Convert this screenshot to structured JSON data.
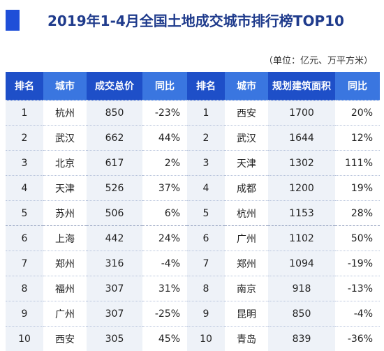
{
  "title": "2019年1-4月全国土地成交城市排行榜TOP10",
  "unit_note": "（单位：亿元、万平方米）",
  "headers": [
    "排名",
    "城市",
    "成交总价",
    "同比",
    "排名",
    "城市",
    "规划建筑面积",
    "同比"
  ],
  "rows": [
    {
      "l_rank": "1",
      "l_city": "杭州",
      "l_value": "850",
      "l_yoy": "-23%",
      "r_rank": "1",
      "r_city": "西安",
      "r_value": "1700",
      "r_yoy": "20%"
    },
    {
      "l_rank": "2",
      "l_city": "武汉",
      "l_value": "662",
      "l_yoy": "44%",
      "r_rank": "2",
      "r_city": "武汉",
      "r_value": "1644",
      "r_yoy": "12%"
    },
    {
      "l_rank": "3",
      "l_city": "北京",
      "l_value": "617",
      "l_yoy": "2%",
      "r_rank": "3",
      "r_city": "天津",
      "r_value": "1302",
      "r_yoy": "111%"
    },
    {
      "l_rank": "4",
      "l_city": "天津",
      "l_value": "526",
      "l_yoy": "37%",
      "r_rank": "4",
      "r_city": "成都",
      "r_value": "1200",
      "r_yoy": "19%"
    },
    {
      "l_rank": "5",
      "l_city": "苏州",
      "l_value": "506",
      "l_yoy": "6%",
      "r_rank": "5",
      "r_city": "杭州",
      "r_value": "1153",
      "r_yoy": "28%"
    },
    {
      "l_rank": "6",
      "l_city": "上海",
      "l_value": "442",
      "l_yoy": "24%",
      "r_rank": "6",
      "r_city": "广州",
      "r_value": "1102",
      "r_yoy": "50%"
    },
    {
      "l_rank": "7",
      "l_city": "郑州",
      "l_value": "316",
      "l_yoy": "-4%",
      "r_rank": "7",
      "r_city": "郑州",
      "r_value": "1094",
      "r_yoy": "-19%"
    },
    {
      "l_rank": "8",
      "l_city": "福州",
      "l_value": "307",
      "l_yoy": "31%",
      "r_rank": "8",
      "r_city": "南京",
      "r_value": "918",
      "r_yoy": "-13%"
    },
    {
      "l_rank": "9",
      "l_city": "广州",
      "l_value": "307",
      "l_yoy": "-25%",
      "r_rank": "9",
      "r_city": "昆明",
      "r_value": "850",
      "r_yoy": "-4%"
    },
    {
      "l_rank": "10",
      "l_city": "西安",
      "l_value": "305",
      "l_yoy": "45%",
      "r_rank": "10",
      "r_city": "青岛",
      "r_value": "839",
      "r_yoy": "-36%"
    }
  ],
  "colors": {
    "header_dark": "#1e4fc8",
    "header_light": "#3a76e0",
    "title": "#1f3b8c",
    "row_shade": "#eef2f8"
  }
}
